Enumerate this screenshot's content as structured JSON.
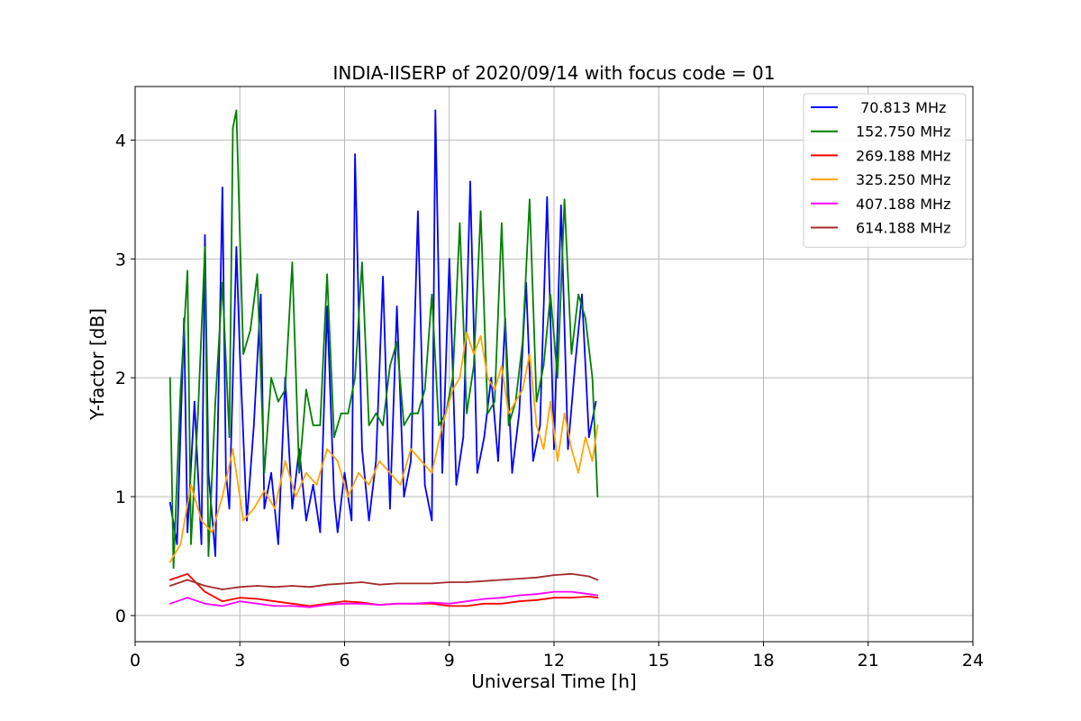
{
  "chart_data": {
    "type": "line",
    "title": "INDIA-IISERP of 2020/09/14 with focus code = 01",
    "xlabel": "Universal Time [h]",
    "ylabel": "Y-factor [dB]",
    "xlim": [
      0,
      24
    ],
    "ylim": [
      -0.22,
      4.45
    ],
    "xticks": [
      0,
      3,
      6,
      9,
      12,
      15,
      18,
      21,
      24
    ],
    "yticks": [
      0,
      1,
      2,
      3,
      4
    ],
    "grid": true,
    "legend_position": "top-right",
    "series": [
      {
        "name": " 70.813 MHz",
        "color": "#0000ff",
        "x": [
          1.0,
          1.2,
          1.4,
          1.5,
          1.7,
          1.9,
          2.0,
          2.1,
          2.3,
          2.5,
          2.6,
          2.7,
          2.9,
          3.0,
          3.2,
          3.4,
          3.6,
          3.7,
          3.9,
          4.1,
          4.3,
          4.5,
          4.7,
          4.9,
          5.1,
          5.3,
          5.5,
          5.7,
          5.8,
          6.0,
          6.2,
          6.3,
          6.5,
          6.7,
          6.9,
          7.1,
          7.3,
          7.5,
          7.7,
          7.9,
          8.1,
          8.3,
          8.5,
          8.6,
          8.8,
          9.0,
          9.2,
          9.4,
          9.6,
          9.8,
          10.0,
          10.2,
          10.4,
          10.6,
          10.8,
          11.0,
          11.2,
          11.4,
          11.6,
          11.8,
          12.0,
          12.2,
          12.4,
          12.6,
          12.8,
          13.0,
          13.2
        ],
        "y": [
          0.95,
          0.6,
          2.5,
          0.7,
          1.8,
          0.6,
          3.2,
          1.2,
          0.5,
          3.6,
          1.2,
          0.9,
          3.1,
          2.2,
          0.8,
          1.6,
          2.7,
          0.9,
          1.2,
          0.6,
          2.0,
          0.9,
          1.4,
          0.8,
          1.1,
          0.7,
          2.6,
          1.0,
          0.7,
          1.2,
          0.8,
          3.88,
          1.4,
          0.8,
          1.3,
          2.85,
          0.9,
          2.6,
          1.0,
          1.3,
          3.4,
          1.1,
          0.8,
          4.25,
          1.2,
          3.0,
          1.1,
          1.5,
          3.65,
          1.2,
          1.5,
          2.0,
          1.3,
          2.5,
          1.2,
          1.7,
          2.8,
          1.3,
          1.6,
          3.52,
          1.4,
          3.45,
          1.4,
          2.1,
          2.7,
          1.5,
          1.8
        ]
      },
      {
        "name": "152.750 MHz",
        "color": "#008000",
        "x": [
          1.0,
          1.1,
          1.3,
          1.5,
          1.6,
          1.8,
          2.0,
          2.1,
          2.3,
          2.5,
          2.7,
          2.8,
          2.9,
          3.0,
          3.1,
          3.3,
          3.5,
          3.7,
          3.9,
          4.1,
          4.3,
          4.5,
          4.7,
          4.9,
          5.1,
          5.3,
          5.5,
          5.7,
          5.9,
          6.1,
          6.3,
          6.5,
          6.7,
          6.9,
          7.1,
          7.3,
          7.5,
          7.7,
          7.9,
          8.1,
          8.3,
          8.5,
          8.7,
          8.9,
          9.1,
          9.3,
          9.5,
          9.7,
          9.9,
          10.1,
          10.3,
          10.5,
          10.7,
          10.9,
          11.1,
          11.3,
          11.5,
          11.7,
          11.9,
          12.1,
          12.3,
          12.5,
          12.7,
          12.9,
          13.1,
          13.25
        ],
        "y": [
          2.0,
          0.4,
          1.9,
          2.9,
          0.6,
          1.7,
          3.1,
          0.5,
          1.8,
          2.8,
          1.5,
          4.1,
          4.25,
          3.2,
          2.2,
          2.4,
          2.87,
          1.2,
          2.0,
          1.8,
          1.9,
          2.97,
          1.2,
          1.9,
          1.6,
          1.6,
          2.87,
          1.5,
          1.7,
          1.7,
          2.0,
          2.97,
          1.6,
          1.7,
          1.6,
          2.1,
          2.3,
          1.6,
          1.7,
          1.7,
          1.9,
          2.7,
          1.6,
          1.7,
          2.0,
          3.3,
          1.7,
          2.1,
          3.4,
          1.7,
          1.8,
          3.3,
          1.6,
          1.8,
          2.3,
          3.5,
          1.8,
          2.1,
          2.7,
          2.0,
          3.5,
          2.2,
          2.7,
          2.5,
          2.0,
          1.0
        ]
      },
      {
        "name": "269.188 MHz",
        "color": "#ff0000",
        "x": [
          1.0,
          1.5,
          2.0,
          2.5,
          3.0,
          3.5,
          4.0,
          4.5,
          5.0,
          5.5,
          6.0,
          6.5,
          7.0,
          7.5,
          8.0,
          8.5,
          9.0,
          9.5,
          10.0,
          10.5,
          11.0,
          11.5,
          12.0,
          12.5,
          13.0,
          13.25
        ],
        "y": [
          0.3,
          0.35,
          0.2,
          0.12,
          0.15,
          0.14,
          0.12,
          0.1,
          0.08,
          0.1,
          0.12,
          0.11,
          0.09,
          0.1,
          0.1,
          0.1,
          0.08,
          0.08,
          0.1,
          0.1,
          0.12,
          0.13,
          0.15,
          0.15,
          0.16,
          0.15
        ]
      },
      {
        "name": "325.250 MHz",
        "color": "#ffa500",
        "x": [
          1.0,
          1.3,
          1.6,
          1.9,
          2.2,
          2.5,
          2.8,
          3.1,
          3.4,
          3.7,
          4.0,
          4.3,
          4.6,
          4.9,
          5.2,
          5.5,
          5.8,
          6.1,
          6.4,
          6.7,
          7.0,
          7.3,
          7.6,
          7.9,
          8.2,
          8.5,
          8.8,
          9.1,
          9.3,
          9.5,
          9.7,
          9.9,
          10.1,
          10.3,
          10.5,
          10.7,
          10.9,
          11.1,
          11.3,
          11.5,
          11.7,
          11.9,
          12.1,
          12.3,
          12.5,
          12.7,
          12.9,
          13.1,
          13.25
        ],
        "y": [
          0.45,
          0.6,
          1.1,
          0.8,
          0.7,
          1.0,
          1.4,
          0.8,
          0.9,
          1.05,
          0.9,
          1.3,
          1.0,
          1.2,
          1.1,
          1.4,
          1.3,
          1.0,
          1.2,
          1.1,
          1.3,
          1.2,
          1.1,
          1.4,
          1.3,
          1.2,
          1.6,
          1.9,
          2.0,
          2.38,
          2.2,
          2.35,
          2.0,
          1.9,
          2.1,
          1.7,
          1.8,
          1.9,
          2.2,
          1.6,
          1.4,
          1.8,
          1.3,
          1.7,
          1.4,
          1.2,
          1.5,
          1.3,
          1.6
        ]
      },
      {
        "name": "407.188 MHz",
        "color": "#ff00ff",
        "x": [
          1.0,
          1.5,
          2.0,
          2.5,
          3.0,
          3.5,
          4.0,
          4.5,
          5.0,
          5.5,
          6.0,
          6.5,
          7.0,
          7.5,
          8.0,
          8.5,
          9.0,
          9.5,
          10.0,
          10.5,
          11.0,
          11.5,
          12.0,
          12.5,
          13.0,
          13.25
        ],
        "y": [
          0.1,
          0.15,
          0.1,
          0.08,
          0.12,
          0.1,
          0.08,
          0.08,
          0.07,
          0.09,
          0.1,
          0.1,
          0.09,
          0.1,
          0.1,
          0.11,
          0.1,
          0.12,
          0.14,
          0.15,
          0.17,
          0.18,
          0.2,
          0.2,
          0.18,
          0.17
        ]
      },
      {
        "name": "614.188 MHz",
        "color": "#a52a2a",
        "x": [
          1.0,
          1.5,
          2.0,
          2.5,
          3.0,
          3.5,
          4.0,
          4.5,
          5.0,
          5.5,
          6.0,
          6.5,
          7.0,
          7.5,
          8.0,
          8.5,
          9.0,
          9.5,
          10.0,
          10.5,
          11.0,
          11.5,
          12.0,
          12.5,
          13.0,
          13.25
        ],
        "y": [
          0.25,
          0.3,
          0.25,
          0.22,
          0.24,
          0.25,
          0.24,
          0.25,
          0.24,
          0.26,
          0.27,
          0.28,
          0.26,
          0.27,
          0.27,
          0.27,
          0.28,
          0.28,
          0.29,
          0.3,
          0.31,
          0.32,
          0.34,
          0.35,
          0.33,
          0.3
        ]
      }
    ]
  }
}
